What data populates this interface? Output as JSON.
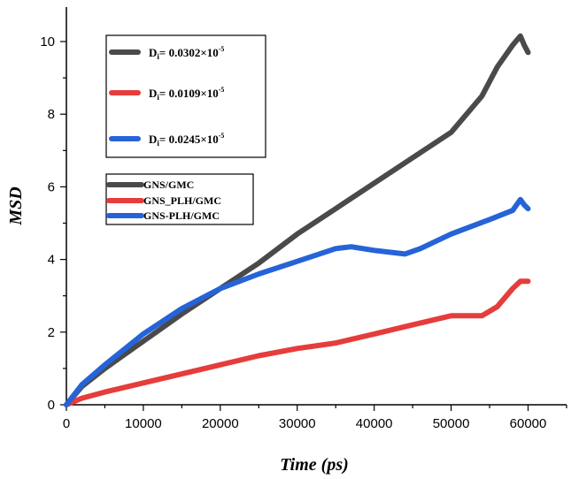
{
  "chart_data": {
    "type": "line",
    "title": "",
    "xlabel": "Time (ps)",
    "ylabel": "MSD",
    "xlim": [
      0,
      65000
    ],
    "ylim": [
      0,
      11
    ],
    "x_ticks": [
      0,
      10000,
      20000,
      30000,
      40000,
      50000,
      60000
    ],
    "x_tick_labels": [
      "0",
      "10000",
      "20000",
      "30000",
      "40000",
      "50000",
      "60000"
    ],
    "y_ticks": [
      0,
      2,
      4,
      6,
      8,
      10
    ],
    "y_tick_labels": [
      "0",
      "2",
      "4",
      "6",
      "8",
      "10"
    ],
    "legend": {
      "placement": "left-middle",
      "entries": [
        "GNS/GMC",
        "GNS_PLH/GMC",
        "GNS-PLH/GMC"
      ]
    },
    "annotations": [
      {
        "series": "GNS/GMC",
        "label": "D",
        "subscript": "i",
        "text": "= 0.0302×10",
        "superscript": "-5"
      },
      {
        "series": "GNS_PLH/GMC",
        "label": "D",
        "subscript": "i",
        "text": "= 0.0109×10",
        "superscript": "-5"
      },
      {
        "series": "GNS-PLH/GMC",
        "label": "D",
        "subscript": "i",
        "text": "= 0.0245×10",
        "superscript": "-5"
      }
    ],
    "series": [
      {
        "name": "GNS/GMC",
        "color": "#4a4a4a",
        "x": [
          0,
          2000,
          5000,
          10000,
          15000,
          20000,
          25000,
          30000,
          35000,
          40000,
          45000,
          50000,
          54000,
          56000,
          58000,
          59000,
          59500,
          60000
        ],
        "y": [
          0,
          0.5,
          1.0,
          1.75,
          2.5,
          3.2,
          3.9,
          4.7,
          5.4,
          6.1,
          6.8,
          7.5,
          8.5,
          9.3,
          9.9,
          10.15,
          9.9,
          9.7
        ]
      },
      {
        "name": "GNS_PLH/GMC",
        "color": "#e63c3c",
        "x": [
          0,
          2000,
          5000,
          10000,
          15000,
          20000,
          25000,
          30000,
          35000,
          40000,
          45000,
          50000,
          52000,
          54000,
          56000,
          58000,
          59000,
          60000
        ],
        "y": [
          0,
          0.18,
          0.35,
          0.6,
          0.85,
          1.1,
          1.35,
          1.55,
          1.7,
          1.95,
          2.2,
          2.45,
          2.45,
          2.45,
          2.7,
          3.2,
          3.4,
          3.4
        ]
      },
      {
        "name": "GNS-PLH/GMC",
        "color": "#2563d8",
        "x": [
          0,
          2000,
          5000,
          10000,
          15000,
          20000,
          25000,
          30000,
          35000,
          37000,
          40000,
          44000,
          46000,
          50000,
          55000,
          58000,
          59000,
          59500,
          60000
        ],
        "y": [
          0,
          0.55,
          1.1,
          1.95,
          2.65,
          3.2,
          3.6,
          3.95,
          4.3,
          4.35,
          4.25,
          4.15,
          4.3,
          4.7,
          5.1,
          5.35,
          5.65,
          5.5,
          5.4
        ]
      }
    ]
  }
}
